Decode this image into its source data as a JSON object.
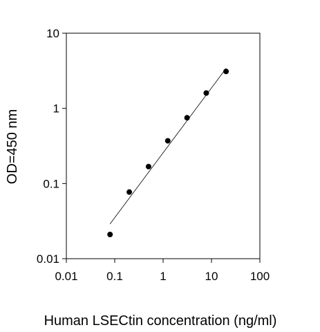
{
  "chart_data": {
    "type": "scatter",
    "xlabel": "Human LSECtin concentration (ng/ml)",
    "ylabel": "OD=450 nm",
    "x_scale": "log",
    "y_scale": "log",
    "xlim": [
      0.01,
      100
    ],
    "ylim": [
      0.01,
      10
    ],
    "x_ticks": [
      0.01,
      0.1,
      1,
      10,
      100
    ],
    "x_tick_labels": [
      "0.01",
      "0.1",
      "1",
      "10",
      "100"
    ],
    "y_ticks": [
      0.01,
      0.1,
      1,
      10
    ],
    "y_tick_labels": [
      "0.01",
      "0.1",
      "1",
      "10"
    ],
    "grid": false,
    "legend": "none",
    "series": [
      {
        "x": [
          0.08,
          0.2,
          0.5,
          1.25,
          3.125,
          7.8,
          20
        ],
        "y": [
          0.021,
          0.077,
          0.168,
          0.37,
          0.75,
          1.6,
          3.1
        ]
      }
    ],
    "fit_line": {
      "x": [
        0.08,
        20
      ],
      "y": [
        0.029,
        3.4
      ]
    }
  }
}
